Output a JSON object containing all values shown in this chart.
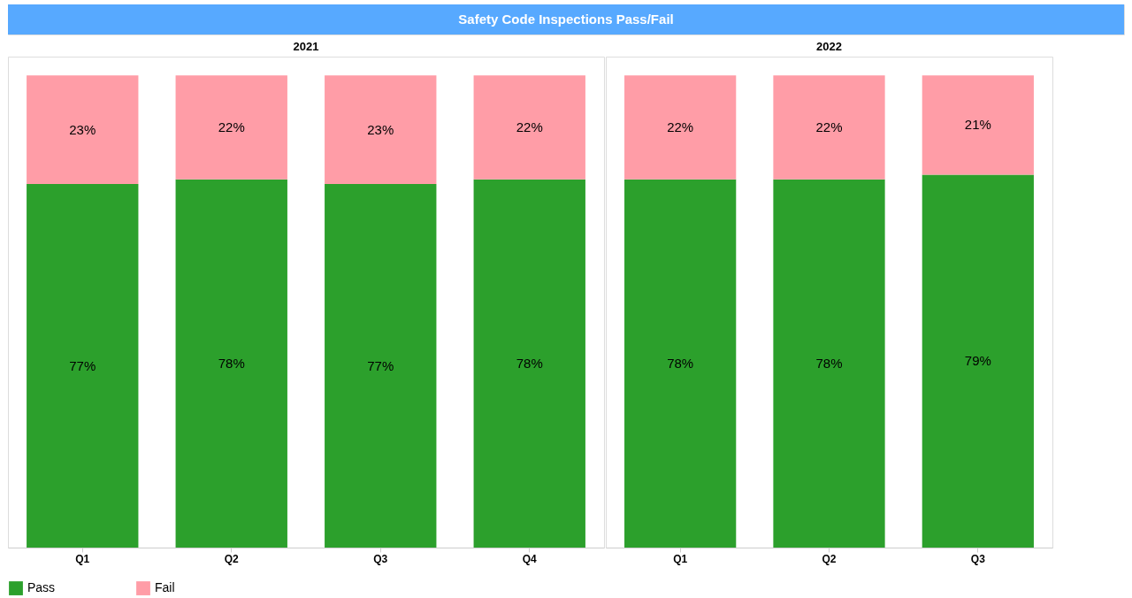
{
  "chart_data": [
    {
      "type": "bar",
      "title": "Safety Code Inspections Pass/Fail",
      "subtitle": "2021",
      "categories": [
        "Q1",
        "Q2",
        "Q3",
        "Q4"
      ],
      "stacked": true,
      "legend": "bottom",
      "grid": false,
      "series": [
        {
          "name": "Pass",
          "color": "#2ca02c",
          "values": [
            77,
            78,
            77,
            78
          ],
          "value_labels": [
            "77%",
            "78%",
            "77%",
            "78%"
          ]
        },
        {
          "name": "Fail",
          "color": "#ff9da7",
          "values": [
            23,
            22,
            23,
            22
          ],
          "value_labels": [
            "23%",
            "22%",
            "23%",
            "22%"
          ]
        }
      ]
    },
    {
      "type": "bar",
      "subtitle": "2022",
      "categories": [
        "Q1",
        "Q2",
        "Q3"
      ],
      "stacked": true,
      "grid": false,
      "series": [
        {
          "name": "Pass",
          "color": "#2ca02c",
          "values": [
            78,
            78,
            79
          ],
          "value_labels": [
            "78%",
            "78%",
            "79%"
          ]
        },
        {
          "name": "Fail",
          "color": "#ff9da7",
          "values": [
            22,
            22,
            21
          ],
          "value_labels": [
            "22%",
            "22%",
            "21%"
          ]
        }
      ]
    }
  ]
}
